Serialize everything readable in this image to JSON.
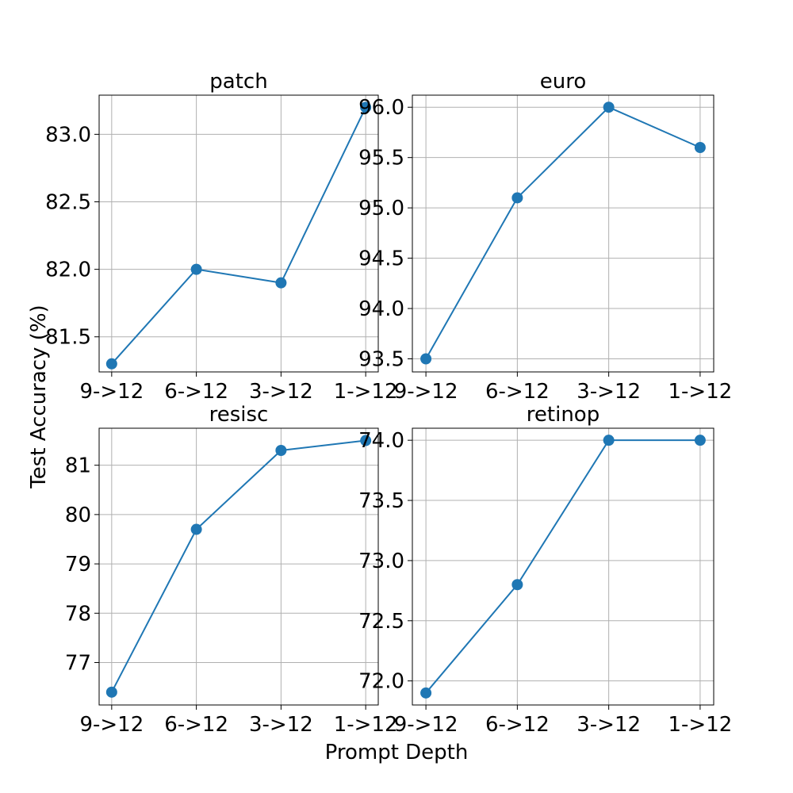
{
  "figure": {
    "xlabel": "Prompt Depth",
    "ylabel": "Test Accuracy (%)"
  },
  "chart_data": [
    {
      "type": "line",
      "title": "patch",
      "categories": [
        "9->12",
        "6->12",
        "3->12",
        "1->12"
      ],
      "values": [
        81.3,
        82.0,
        81.9,
        83.2
      ],
      "ylim": [
        81.24,
        83.29
      ],
      "yticks": [
        81.5,
        82.0,
        82.5,
        83.0
      ],
      "ytick_labels": [
        "81.5",
        "82.0",
        "82.5",
        "83.0"
      ],
      "grid": true,
      "color": "#1f77b4"
    },
    {
      "type": "line",
      "title": "euro",
      "categories": [
        "9->12",
        "6->12",
        "3->12",
        "1->12"
      ],
      "values": [
        93.5,
        95.1,
        96.0,
        95.6
      ],
      "ylim": [
        93.37,
        96.12
      ],
      "yticks": [
        93.5,
        94.0,
        94.5,
        95.0,
        95.5,
        96.0
      ],
      "ytick_labels": [
        "93.5",
        "94.0",
        "94.5",
        "95.0",
        "95.5",
        "96.0"
      ],
      "grid": true,
      "color": "#1f77b4"
    },
    {
      "type": "line",
      "title": "resisc",
      "categories": [
        "9->12",
        "6->12",
        "3->12",
        "1->12"
      ],
      "values": [
        76.4,
        79.7,
        81.3,
        81.5
      ],
      "ylim": [
        76.14,
        81.75
      ],
      "yticks": [
        77,
        78,
        79,
        80,
        81
      ],
      "ytick_labels": [
        "77",
        "78",
        "79",
        "80",
        "81"
      ],
      "grid": true,
      "color": "#1f77b4"
    },
    {
      "type": "line",
      "title": "retinop",
      "categories": [
        "9->12",
        "6->12",
        "3->12",
        "1->12"
      ],
      "values": [
        71.9,
        72.8,
        74.0,
        74.0
      ],
      "ylim": [
        71.8,
        74.1
      ],
      "yticks": [
        72.0,
        72.5,
        73.0,
        73.5,
        74.0
      ],
      "ytick_labels": [
        "72.0",
        "72.5",
        "73.0",
        "73.5",
        "74.0"
      ],
      "grid": true,
      "color": "#1f77b4"
    }
  ]
}
